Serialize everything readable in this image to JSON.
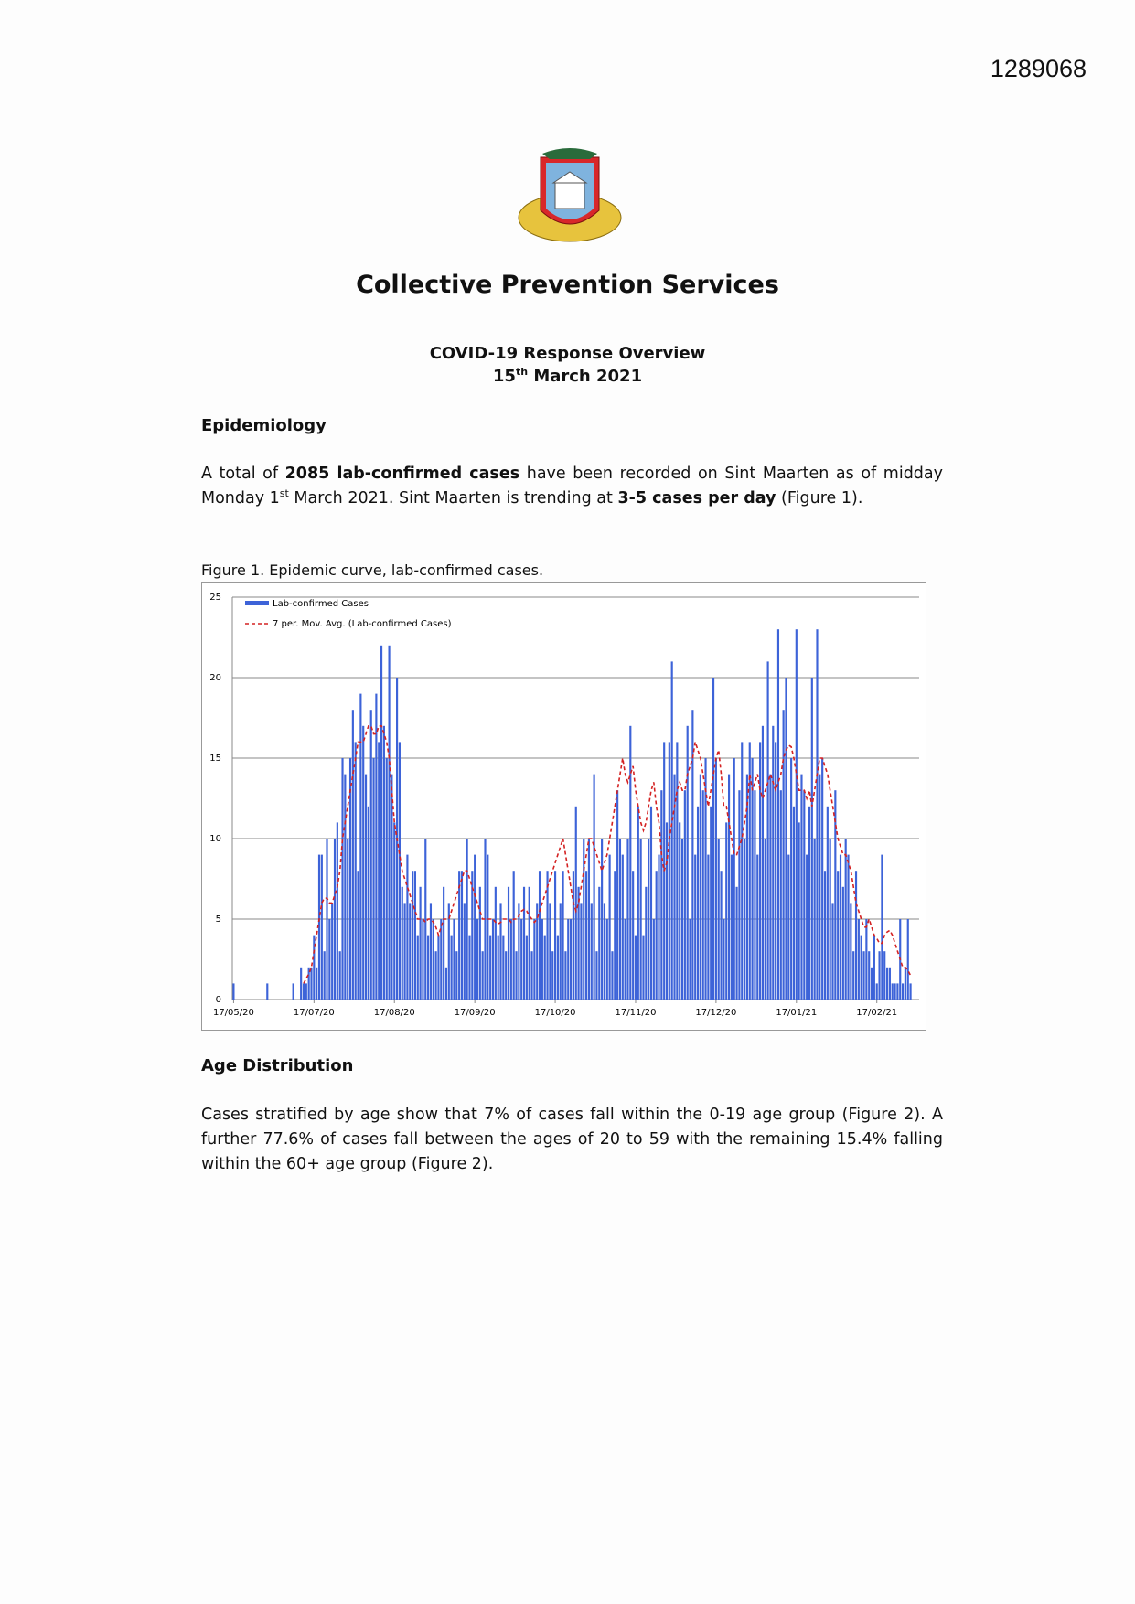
{
  "doc_id": "1289068",
  "header": {
    "title": "Collective Prevention Services",
    "subtitle": "COVID-19 Response Overview",
    "date": [
      "15",
      "th",
      " March 2021"
    ]
  },
  "epidemiology": {
    "heading": "Epidemiology",
    "paragraph": [
      "A total of ",
      "2085 lab-confirmed cases",
      " have been recorded on Sint Maarten as of midday Monday 1",
      "st",
      " March 2021. Sint Maarten is trending at ",
      "3-5 cases per day",
      " (Figure 1)."
    ],
    "caption": "Figure 1. Epidemic curve, lab-confirmed cases."
  },
  "age": {
    "heading": "Age Distribution",
    "paragraph": "Cases stratified by age show that 7% of cases fall within the 0-19 age group (Figure 2). A further 77.6% of cases fall between the ages of 20 to 59 with the remaining 15.4% falling within the 60+ age group (Figure 2)."
  },
  "chart_data": {
    "type": "bar",
    "ylim": [
      0,
      25
    ],
    "yticks": [
      0,
      5,
      10,
      15,
      20,
      25
    ],
    "grid": true,
    "legend": "top-left",
    "categories": [
      "17/05/20",
      null,
      null,
      null,
      null,
      null,
      null,
      null,
      null,
      null,
      null,
      null,
      null,
      null,
      null,
      null,
      null,
      null,
      null,
      null,
      null,
      null,
      null,
      null,
      null,
      null,
      null,
      null,
      null,
      null,
      null,
      "17/07/20",
      null,
      null,
      null,
      null,
      null,
      null,
      null,
      null,
      null,
      null,
      null,
      null,
      null,
      null,
      null,
      null,
      null,
      null,
      null,
      null,
      null,
      null,
      null,
      null,
      null,
      null,
      null,
      null,
      null,
      null,
      "17/08/20",
      null,
      null,
      null,
      null,
      null,
      null,
      null,
      null,
      null,
      null,
      null,
      null,
      null,
      null,
      null,
      null,
      null,
      null,
      null,
      null,
      null,
      null,
      null,
      null,
      null,
      null,
      null,
      null,
      null,
      null,
      "17/09/20",
      null,
      null,
      null,
      null,
      null,
      null,
      null,
      null,
      null,
      null,
      null,
      null,
      null,
      null,
      null,
      null,
      null,
      null,
      null,
      null,
      null,
      null,
      null,
      null,
      null,
      null,
      null,
      null,
      null,
      null,
      "17/10/20",
      null,
      null,
      null,
      null,
      null,
      null,
      null,
      null,
      null,
      null,
      null,
      null,
      null,
      null,
      null,
      null,
      null,
      null,
      null,
      null,
      null,
      null,
      null,
      null,
      null,
      null,
      null,
      null,
      null,
      null,
      "17/11/20",
      null,
      null,
      null,
      null,
      null,
      null,
      null,
      null,
      null,
      null,
      null,
      null,
      null,
      null,
      null,
      null,
      null,
      null,
      null,
      null,
      null,
      null,
      null,
      null,
      null,
      null,
      null,
      null,
      null,
      null,
      "17/12/20",
      null,
      null,
      null,
      null,
      null,
      null,
      null,
      null,
      null,
      null,
      null,
      null,
      null,
      null,
      null,
      null,
      null,
      null,
      null,
      null,
      null,
      null,
      null,
      null,
      null,
      null,
      null,
      null,
      null,
      null,
      "17/01/21",
      null,
      null,
      null,
      null,
      null,
      null,
      null,
      null,
      null,
      null,
      null,
      null,
      null,
      null,
      null,
      null,
      null,
      null,
      null,
      null,
      null,
      null,
      null,
      null,
      null,
      null,
      null,
      null,
      null,
      null,
      "17/02/21",
      null,
      null,
      null,
      null,
      null,
      null,
      null,
      null,
      null,
      null,
      null,
      null,
      null
    ],
    "series": [
      {
        "name": "Lab-confirmed Cases",
        "color": "#3d63d8",
        "values": [
          1,
          0,
          0,
          0,
          0,
          0,
          0,
          0,
          0,
          0,
          0,
          0,
          0,
          1,
          0,
          0,
          0,
          0,
          0,
          0,
          0,
          0,
          0,
          1,
          0,
          0,
          2,
          1,
          1,
          2,
          2,
          4,
          2,
          9,
          9,
          3,
          10,
          5,
          6,
          10,
          11,
          3,
          15,
          14,
          10,
          15,
          18,
          16,
          8,
          19,
          17,
          14,
          12,
          18,
          15,
          19,
          16,
          22,
          17,
          15,
          22,
          14,
          11,
          20,
          16,
          7,
          6,
          9,
          6,
          8,
          8,
          4,
          7,
          5,
          10,
          4,
          6,
          5,
          3,
          4,
          5,
          7,
          2,
          6,
          4,
          5,
          3,
          8,
          8,
          6,
          10,
          4,
          8,
          9,
          5,
          7,
          3,
          10,
          9,
          4,
          5,
          7,
          4,
          6,
          4,
          3,
          7,
          5,
          8,
          3,
          6,
          5,
          7,
          4,
          7,
          3,
          5,
          6,
          8,
          5,
          4,
          8,
          6,
          3,
          8,
          4,
          6,
          8,
          3,
          5,
          5,
          8,
          12,
          7,
          6,
          10,
          8,
          10,
          6,
          14,
          3,
          7,
          10,
          6,
          5,
          9,
          3,
          8,
          13,
          10,
          9,
          5,
          10,
          17,
          8,
          4,
          12,
          10,
          4,
          7,
          10,
          12,
          5,
          8,
          9,
          13,
          16,
          11,
          16,
          21,
          14,
          16,
          11,
          10,
          13,
          17,
          5,
          18,
          9,
          12,
          14,
          13,
          15,
          9,
          12,
          20,
          15,
          10,
          8,
          5,
          11,
          14,
          9,
          15,
          7,
          13,
          16,
          10,
          14,
          16,
          15,
          13,
          9,
          16,
          17,
          10,
          21,
          14,
          17,
          16,
          23,
          13,
          18,
          20,
          9,
          15,
          12,
          23,
          11,
          14,
          13,
          9,
          12,
          20,
          10,
          23,
          14,
          15,
          8,
          12,
          10,
          6,
          13,
          8,
          9,
          7,
          10,
          9,
          6,
          3,
          8,
          5,
          4,
          3,
          5,
          3,
          2,
          4,
          1,
          3,
          9,
          3,
          2,
          2,
          1,
          1,
          1,
          5,
          1,
          2,
          5,
          1
        ]
      },
      {
        "name": "7 per. Mov. Avg. (Lab-confirmed Cases)",
        "color": "#d42222",
        "values": [
          null,
          null,
          null,
          null,
          null,
          null,
          null,
          null,
          null,
          null,
          null,
          null,
          null,
          null,
          null,
          null,
          null,
          null,
          null,
          null,
          null,
          null,
          null,
          null,
          null,
          null,
          null,
          1,
          1.3,
          1.6,
          2,
          3,
          4,
          5,
          6,
          6.3,
          6.3,
          6,
          6,
          6.5,
          7,
          8,
          10,
          11,
          12,
          13,
          14,
          15,
          16,
          16,
          16,
          16.5,
          17,
          17,
          16.5,
          16.5,
          17,
          17,
          16.5,
          16,
          15,
          13,
          11,
          10,
          9,
          8,
          7.5,
          7,
          6.5,
          6,
          5.5,
          5,
          5,
          5,
          4.8,
          5,
          5,
          4.8,
          4.5,
          4,
          4.5,
          5,
          5,
          5,
          5.5,
          6,
          6.5,
          7,
          7.5,
          8,
          8,
          7.5,
          7,
          6.5,
          6,
          5.5,
          5,
          5,
          5,
          5,
          5,
          4.8,
          4.7,
          4.8,
          5,
          5,
          5,
          4.8,
          5,
          5,
          5.2,
          5.5,
          5.6,
          5.5,
          5.2,
          5,
          4.8,
          5,
          5.5,
          6,
          6.5,
          7,
          7.5,
          8,
          8.5,
          9,
          9.5,
          10,
          9,
          8,
          7,
          6,
          5.5,
          6,
          7,
          8,
          9,
          10,
          10,
          9.5,
          9,
          8.5,
          8,
          8.5,
          9,
          10,
          11,
          12,
          13,
          14,
          15,
          14,
          13.5,
          14,
          14.5,
          13,
          12,
          11,
          10.5,
          11,
          12,
          13,
          13.5,
          12,
          11,
          9,
          8,
          8.5,
          10,
          11,
          12,
          13,
          13.5,
          13,
          13,
          14,
          14.5,
          15,
          16,
          15.5,
          15,
          14,
          13,
          12,
          13,
          14,
          15,
          15.5,
          14,
          12,
          12,
          11,
          10,
          9,
          9,
          9.5,
          10,
          11,
          12,
          14,
          13,
          13.5,
          14,
          13,
          12.5,
          13,
          13.5,
          14,
          13.5,
          13,
          13.5,
          14,
          15,
          15.5,
          15.8,
          15.7,
          15,
          14,
          13,
          13,
          13,
          12.5,
          13,
          12,
          13,
          14,
          15,
          15,
          14.5,
          14,
          13,
          12,
          11,
          10,
          9.5,
          9,
          9,
          8.5,
          8,
          7,
          6,
          5.5,
          5,
          4.5,
          4.5,
          5,
          4.5,
          4,
          3.8,
          3.5,
          3.5,
          4,
          4.2,
          4.3,
          4,
          3.5,
          3,
          2.5,
          2,
          2,
          1.8,
          1.5
        ]
      }
    ]
  }
}
